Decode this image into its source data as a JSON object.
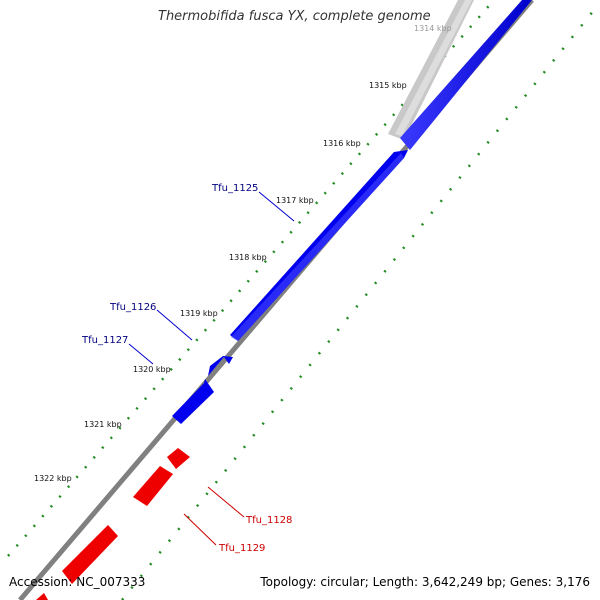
{
  "title": "Thermobifida fusca YX, complete genome",
  "accession": "Accession: NC_007333",
  "topology": "Topology: circular; Length: 3,642,249 bp; Genes: 3,176",
  "colors": {
    "forward_gene": "#0000ee",
    "reverse_gene": "#ee0000",
    "other_gene": "#c0c0c0",
    "backbone": "#808080",
    "ticks": "#228b22",
    "blue_label": "#000080",
    "red_label": "#cc0000"
  },
  "ticks": [
    {
      "label": "1314 kbp",
      "faint": true
    },
    {
      "label": "1315 kbp",
      "faint": false
    },
    {
      "label": "1316 kbp",
      "faint": false
    },
    {
      "label": "1317 kbp",
      "faint": false
    },
    {
      "label": "1318 kbp",
      "faint": false
    },
    {
      "label": "1319 kbp",
      "faint": false
    },
    {
      "label": "1320 kbp",
      "faint": false
    },
    {
      "label": "1321 kbp",
      "faint": false
    },
    {
      "label": "1322 kbp",
      "faint": false
    }
  ],
  "genes": [
    {
      "name": "Tfu_1125",
      "strand": "forward"
    },
    {
      "name": "Tfu_1126",
      "strand": "forward"
    },
    {
      "name": "Tfu_1127",
      "strand": "forward"
    },
    {
      "name": "Tfu_1128",
      "strand": "reverse"
    },
    {
      "name": "Tfu_1129",
      "strand": "reverse"
    }
  ]
}
